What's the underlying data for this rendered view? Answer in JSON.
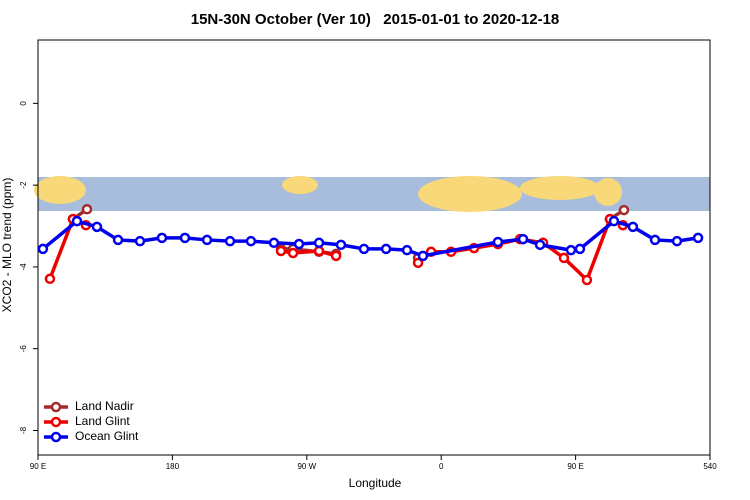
{
  "chart_data": {
    "type": "line",
    "title": "15N-30N October (Ver 10)   2015-01-01 to 2020-12-18",
    "x_label": "Longitude",
    "y_label": "XCO2 - MLO trend (ppm)",
    "xlim": [
      90,
      540
    ],
    "xticks": [
      {
        "value": 90,
        "label": "90 E"
      },
      180,
      {
        "value": 270,
        "label": "90 W"
      },
      {
        "value": 360,
        "label": "0"
      },
      {
        "value": 450,
        "label": "90 E"
      },
      540
    ],
    "ylim": [
      -8.6,
      1.55
    ],
    "yticks": [
      0,
      -2,
      -4,
      -6,
      -8
    ],
    "legend": "bottom-left",
    "series": [
      {
        "name": "Land Nadir",
        "color": "#a52a2a",
        "x": [
          113.4,
          122.8,
          null,
          252.7,
          260.8,
          278.2,
          289.6,
          null,
          344.5,
          null,
          473.0,
          482.4
        ],
        "values": [
          -2.83,
          -2.59,
          null,
          -3.56,
          -3.56,
          -3.63,
          -3.68,
          null,
          -3.78,
          null,
          -2.83,
          -2.61
        ]
      },
      {
        "name": "Land Glint",
        "color": "#ee0000",
        "x": [
          98.0,
          113.4,
          122.1,
          null,
          252.7,
          260.8,
          278.2,
          289.6,
          null,
          344.5,
          353.2,
          366.6,
          382.0,
          398.0,
          412.8,
          428.2,
          442.2,
          457.6,
          473.0,
          481.7
        ],
        "values": [
          -4.29,
          -2.83,
          -2.98,
          null,
          -3.61,
          -3.66,
          -3.61,
          -3.73,
          null,
          -3.9,
          -3.63,
          -3.63,
          -3.54,
          -3.44,
          -3.32,
          -3.41,
          -3.78,
          -4.32,
          -2.83,
          -2.98
        ]
      },
      {
        "name": "Ocean Glint",
        "color": "#0000ee",
        "x": [
          93.3,
          116.1,
          129.5,
          143.6,
          158.3,
          173.0,
          188.4,
          203.2,
          218.6,
          232.6,
          248.0,
          264.8,
          278.2,
          292.9,
          308.3,
          323.1,
          337.1,
          347.8,
          398.0,
          414.8,
          426.2,
          446.9,
          452.9,
          475.7,
          488.4,
          503.2,
          517.9,
          532.0
        ],
        "values": [
          -3.56,
          -2.88,
          -3.02,
          -3.34,
          -3.37,
          -3.29,
          -3.29,
          -3.34,
          -3.37,
          -3.37,
          -3.41,
          -3.44,
          -3.41,
          -3.46,
          -3.56,
          -3.56,
          -3.59,
          -3.73,
          -3.39,
          -3.32,
          -3.46,
          -3.59,
          -3.56,
          -2.88,
          -3.02,
          -3.34,
          -3.37,
          -3.29
        ]
      }
    ]
  }
}
